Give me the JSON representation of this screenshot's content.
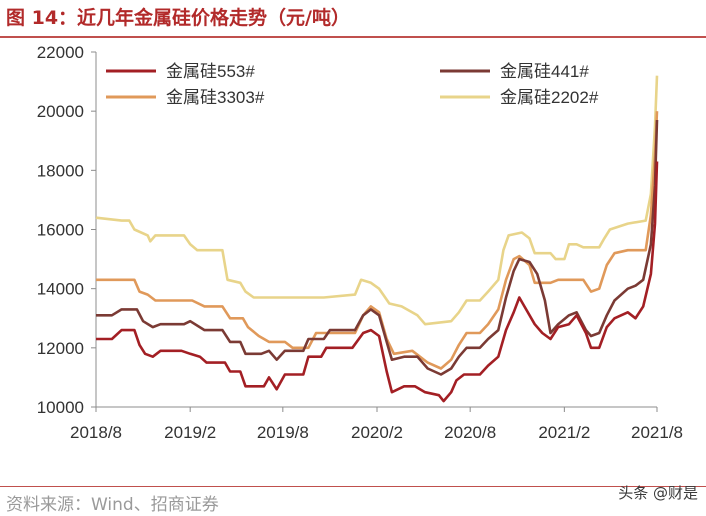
{
  "header": {
    "title": "图 14：近几年金属硅价格走势（元/吨）"
  },
  "footer": {
    "source": "资料来源：Wind、招商证券",
    "watermark": "头条 @财是"
  },
  "chart_data": {
    "type": "line",
    "title": "",
    "xlabel": "",
    "ylabel": "",
    "ylim": [
      10000,
      22000
    ],
    "yticks": [
      10000,
      12000,
      14000,
      16000,
      18000,
      20000,
      22000
    ],
    "ytick_labels": [
      "10000",
      "12000",
      "14000",
      "16000",
      "18000",
      "20000",
      "22000"
    ],
    "xticks": [
      "2018/8",
      "2019/2",
      "2019/8",
      "2020/2",
      "2020/8",
      "2021/2",
      "2021/8"
    ],
    "xtick_values": [
      "2018-08-01",
      "2019-02-01",
      "2019-08-01",
      "2020-02-01",
      "2020-08-01",
      "2021-02-01",
      "2021-08-01"
    ],
    "xlim": [
      "2018-08-01",
      "2021-08-01"
    ],
    "grid": false,
    "legend_position": "top",
    "series": [
      {
        "name": "金属硅553#",
        "color": "#a31f24",
        "points": [
          [
            "2018-08-01",
            12300
          ],
          [
            "2018-09-01",
            12300
          ],
          [
            "2018-09-20",
            12600
          ],
          [
            "2018-10-15",
            12600
          ],
          [
            "2018-10-25",
            12100
          ],
          [
            "2018-11-05",
            11800
          ],
          [
            "2018-11-20",
            11700
          ],
          [
            "2018-12-05",
            11900
          ],
          [
            "2019-01-15",
            11900
          ],
          [
            "2019-02-01",
            11800
          ],
          [
            "2019-02-20",
            11700
          ],
          [
            "2019-03-05",
            11500
          ],
          [
            "2019-04-10",
            11500
          ],
          [
            "2019-04-20",
            11200
          ],
          [
            "2019-05-10",
            11200
          ],
          [
            "2019-05-20",
            10700
          ],
          [
            "2019-06-25",
            10700
          ],
          [
            "2019-07-05",
            11000
          ],
          [
            "2019-07-20",
            10600
          ],
          [
            "2019-08-05",
            11100
          ],
          [
            "2019-09-10",
            11100
          ],
          [
            "2019-09-20",
            11700
          ],
          [
            "2019-10-15",
            11700
          ],
          [
            "2019-10-25",
            12000
          ],
          [
            "2019-12-15",
            12000
          ],
          [
            "2020-01-05",
            12500
          ],
          [
            "2020-01-20",
            12600
          ],
          [
            "2020-02-05",
            12400
          ],
          [
            "2020-02-20",
            11200
          ],
          [
            "2020-03-01",
            10500
          ],
          [
            "2020-03-25",
            10700
          ],
          [
            "2020-04-15",
            10700
          ],
          [
            "2020-05-05",
            10500
          ],
          [
            "2020-06-01",
            10400
          ],
          [
            "2020-06-10",
            10200
          ],
          [
            "2020-06-25",
            10500
          ],
          [
            "2020-07-05",
            10900
          ],
          [
            "2020-07-20",
            11100
          ],
          [
            "2020-08-20",
            11100
          ],
          [
            "2020-09-05",
            11400
          ],
          [
            "2020-09-25",
            11700
          ],
          [
            "2020-10-10",
            12600
          ],
          [
            "2020-10-25",
            13200
          ],
          [
            "2020-11-05",
            13700
          ],
          [
            "2020-11-15",
            13400
          ],
          [
            "2020-12-05",
            12800
          ],
          [
            "2020-12-20",
            12500
          ],
          [
            "2021-01-05",
            12300
          ],
          [
            "2021-01-20",
            12700
          ],
          [
            "2021-02-10",
            12800
          ],
          [
            "2021-02-25",
            13100
          ],
          [
            "2021-03-15",
            12500
          ],
          [
            "2021-03-25",
            12000
          ],
          [
            "2021-04-10",
            12000
          ],
          [
            "2021-04-25",
            12700
          ],
          [
            "2021-05-10",
            13000
          ],
          [
            "2021-06-05",
            13200
          ],
          [
            "2021-06-20",
            13000
          ],
          [
            "2021-07-05",
            13400
          ],
          [
            "2021-07-20",
            14500
          ],
          [
            "2021-07-28",
            16200
          ],
          [
            "2021-08-01",
            18300
          ]
        ]
      },
      {
        "name": "金属硅441#",
        "color": "#7b3a34",
        "points": [
          [
            "2018-08-01",
            13100
          ],
          [
            "2018-09-01",
            13100
          ],
          [
            "2018-09-20",
            13300
          ],
          [
            "2018-10-20",
            13300
          ],
          [
            "2018-11-01",
            12900
          ],
          [
            "2018-11-20",
            12700
          ],
          [
            "2018-12-05",
            12800
          ],
          [
            "2019-01-20",
            12800
          ],
          [
            "2019-02-01",
            12900
          ],
          [
            "2019-03-01",
            12600
          ],
          [
            "2019-04-05",
            12600
          ],
          [
            "2019-04-20",
            12200
          ],
          [
            "2019-05-10",
            12200
          ],
          [
            "2019-05-20",
            11800
          ],
          [
            "2019-06-20",
            11800
          ],
          [
            "2019-07-05",
            11900
          ],
          [
            "2019-07-20",
            11600
          ],
          [
            "2019-08-05",
            11900
          ],
          [
            "2019-09-10",
            11900
          ],
          [
            "2019-09-20",
            12300
          ],
          [
            "2019-10-20",
            12300
          ],
          [
            "2019-11-01",
            12600
          ],
          [
            "2019-12-20",
            12600
          ],
          [
            "2020-01-05",
            13100
          ],
          [
            "2020-01-20",
            13300
          ],
          [
            "2020-02-05",
            13100
          ],
          [
            "2020-02-20",
            12200
          ],
          [
            "2020-03-01",
            11600
          ],
          [
            "2020-03-25",
            11700
          ],
          [
            "2020-04-20",
            11700
          ],
          [
            "2020-05-10",
            11300
          ],
          [
            "2020-06-05",
            11100
          ],
          [
            "2020-06-25",
            11300
          ],
          [
            "2020-07-10",
            11700
          ],
          [
            "2020-07-25",
            12000
          ],
          [
            "2020-08-20",
            12000
          ],
          [
            "2020-09-05",
            12300
          ],
          [
            "2020-09-25",
            12600
          ],
          [
            "2020-10-10",
            13700
          ],
          [
            "2020-10-25",
            14600
          ],
          [
            "2020-11-05",
            15000
          ],
          [
            "2020-11-25",
            14900
          ],
          [
            "2020-12-10",
            14500
          ],
          [
            "2020-12-25",
            13600
          ],
          [
            "2021-01-05",
            12500
          ],
          [
            "2021-01-20",
            12800
          ],
          [
            "2021-02-10",
            13100
          ],
          [
            "2021-02-25",
            13200
          ],
          [
            "2021-03-15",
            12600
          ],
          [
            "2021-03-25",
            12400
          ],
          [
            "2021-04-10",
            12500
          ],
          [
            "2021-04-25",
            13100
          ],
          [
            "2021-05-10",
            13600
          ],
          [
            "2021-06-05",
            14000
          ],
          [
            "2021-06-20",
            14100
          ],
          [
            "2021-07-05",
            14300
          ],
          [
            "2021-07-20",
            15500
          ],
          [
            "2021-07-28",
            17500
          ],
          [
            "2021-08-01",
            19700
          ]
        ]
      },
      {
        "name": "金属硅3303#",
        "color": "#e0995a",
        "points": [
          [
            "2018-08-01",
            14300
          ],
          [
            "2018-10-15",
            14300
          ],
          [
            "2018-10-25",
            13900
          ],
          [
            "2018-11-10",
            13800
          ],
          [
            "2018-11-25",
            13600
          ],
          [
            "2019-01-20",
            13600
          ],
          [
            "2019-02-05",
            13600
          ],
          [
            "2019-03-01",
            13400
          ],
          [
            "2019-04-05",
            13400
          ],
          [
            "2019-04-20",
            13000
          ],
          [
            "2019-05-15",
            13000
          ],
          [
            "2019-05-25",
            12700
          ],
          [
            "2019-06-15",
            12400
          ],
          [
            "2019-07-05",
            12200
          ],
          [
            "2019-08-05",
            12200
          ],
          [
            "2019-08-20",
            12000
          ],
          [
            "2019-09-20",
            12000
          ],
          [
            "2019-10-05",
            12500
          ],
          [
            "2019-12-20",
            12500
          ],
          [
            "2020-01-05",
            13100
          ],
          [
            "2020-01-20",
            13400
          ],
          [
            "2020-02-05",
            13200
          ],
          [
            "2020-02-20",
            12300
          ],
          [
            "2020-03-05",
            11800
          ],
          [
            "2020-04-10",
            11900
          ],
          [
            "2020-05-10",
            11500
          ],
          [
            "2020-06-05",
            11300
          ],
          [
            "2020-06-25",
            11600
          ],
          [
            "2020-07-10",
            12100
          ],
          [
            "2020-07-25",
            12500
          ],
          [
            "2020-08-20",
            12500
          ],
          [
            "2020-09-05",
            12800
          ],
          [
            "2020-09-25",
            13300
          ],
          [
            "2020-10-10",
            14300
          ],
          [
            "2020-10-25",
            15000
          ],
          [
            "2020-11-05",
            15100
          ],
          [
            "2020-11-25",
            14800
          ],
          [
            "2020-12-05",
            14200
          ],
          [
            "2021-01-05",
            14200
          ],
          [
            "2021-01-20",
            14300
          ],
          [
            "2021-02-25",
            14300
          ],
          [
            "2021-03-10",
            14300
          ],
          [
            "2021-03-25",
            13900
          ],
          [
            "2021-04-10",
            14000
          ],
          [
            "2021-04-25",
            14800
          ],
          [
            "2021-05-10",
            15200
          ],
          [
            "2021-06-05",
            15300
          ],
          [
            "2021-07-10",
            15300
          ],
          [
            "2021-07-20",
            16500
          ],
          [
            "2021-07-28",
            18500
          ],
          [
            "2021-08-01",
            20000
          ]
        ]
      },
      {
        "name": "金属硅2202#",
        "color": "#e8d48a",
        "points": [
          [
            "2018-08-01",
            16400
          ],
          [
            "2018-09-20",
            16300
          ],
          [
            "2018-10-05",
            16300
          ],
          [
            "2018-10-15",
            16000
          ],
          [
            "2018-11-10",
            15800
          ],
          [
            "2018-11-15",
            15600
          ],
          [
            "2018-11-25",
            15800
          ],
          [
            "2019-01-20",
            15800
          ],
          [
            "2019-02-01",
            15500
          ],
          [
            "2019-02-15",
            15300
          ],
          [
            "2019-04-05",
            15300
          ],
          [
            "2019-04-15",
            14300
          ],
          [
            "2019-05-10",
            14200
          ],
          [
            "2019-05-20",
            13900
          ],
          [
            "2019-06-05",
            13700
          ],
          [
            "2019-08-05",
            13700
          ],
          [
            "2019-10-20",
            13700
          ],
          [
            "2019-12-20",
            13800
          ],
          [
            "2020-01-01",
            14300
          ],
          [
            "2020-01-20",
            14200
          ],
          [
            "2020-02-05",
            14000
          ],
          [
            "2020-02-25",
            13500
          ],
          [
            "2020-03-20",
            13400
          ],
          [
            "2020-04-20",
            13100
          ],
          [
            "2020-05-05",
            12800
          ],
          [
            "2020-06-25",
            12900
          ],
          [
            "2020-07-10",
            13200
          ],
          [
            "2020-07-25",
            13600
          ],
          [
            "2020-08-20",
            13600
          ],
          [
            "2020-09-05",
            13900
          ],
          [
            "2020-09-25",
            14300
          ],
          [
            "2020-10-05",
            15300
          ],
          [
            "2020-10-15",
            15800
          ],
          [
            "2020-11-10",
            15900
          ],
          [
            "2020-11-25",
            15700
          ],
          [
            "2020-12-05",
            15200
          ],
          [
            "2021-01-05",
            15200
          ],
          [
            "2021-01-15",
            15000
          ],
          [
            "2021-02-01",
            15000
          ],
          [
            "2021-02-10",
            15500
          ],
          [
            "2021-02-25",
            15500
          ],
          [
            "2021-03-10",
            15400
          ],
          [
            "2021-04-10",
            15400
          ],
          [
            "2021-04-20",
            15700
          ],
          [
            "2021-05-01",
            16000
          ],
          [
            "2021-06-05",
            16200
          ],
          [
            "2021-07-10",
            16300
          ],
          [
            "2021-07-20",
            17200
          ],
          [
            "2021-07-28",
            19500
          ],
          [
            "2021-08-01",
            21200
          ]
        ]
      }
    ]
  }
}
